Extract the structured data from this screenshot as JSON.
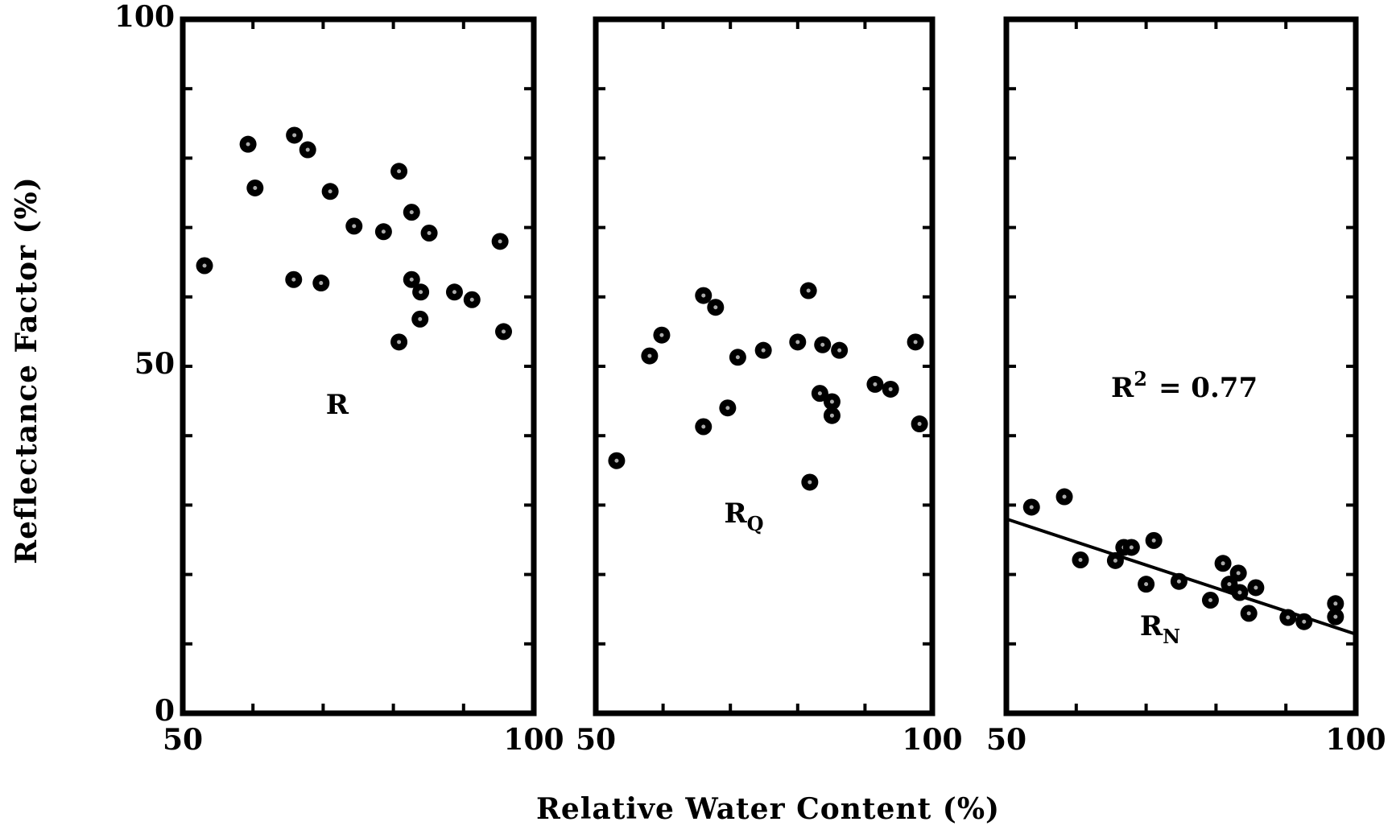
{
  "xlabel": "Relative Water Content (%)",
  "ylabel": "Reflectance Factor (%)",
  "chart_data": [
    {
      "type": "scatter",
      "label": "R",
      "color": "#000000",
      "xlim": [
        50,
        100
      ],
      "ylim": [
        0,
        100
      ],
      "xticks": [
        50,
        100
      ],
      "yticks": [
        0,
        50,
        100
      ],
      "xminor": [
        60,
        70,
        80,
        90
      ],
      "yminor": [
        10,
        20,
        30,
        40,
        50,
        60,
        70,
        80,
        90
      ],
      "x": [
        53.1,
        59.3,
        60.3,
        65.9,
        67.8,
        65.8,
        69.7,
        71.0,
        74.4,
        78.6,
        80.8,
        82.6,
        85.1,
        82.6,
        83.9,
        83.8,
        80.8,
        88.7,
        91.2,
        95.2,
        95.7
      ],
      "values": [
        64.5,
        82.0,
        75.7,
        83.3,
        81.2,
        62.5,
        62.0,
        75.2,
        70.2,
        69.4,
        78.1,
        72.2,
        69.2,
        62.5,
        60.7,
        56.8,
        53.5,
        60.7,
        59.6,
        68.0,
        55.0
      ]
    },
    {
      "type": "scatter",
      "label": "R",
      "label_sub": "Q",
      "color": "#000000",
      "xlim": [
        50,
        100
      ],
      "ylim": [
        0,
        100
      ],
      "xticks": [
        50,
        100
      ],
      "xminor": [
        60,
        70,
        80,
        90
      ],
      "yminor": [
        10,
        20,
        30,
        40,
        50,
        60,
        70,
        80,
        90
      ],
      "x": [
        53.1,
        58.0,
        59.8,
        66.0,
        67.8,
        66.0,
        69.6,
        71.1,
        74.9,
        80.0,
        81.6,
        83.7,
        86.2,
        83.3,
        85.1,
        85.1,
        81.8,
        91.5,
        93.8,
        97.5,
        98.1
      ],
      "values": [
        36.4,
        51.5,
        54.5,
        60.2,
        58.5,
        41.3,
        44.0,
        51.3,
        52.3,
        53.5,
        60.9,
        53.1,
        52.3,
        46.1,
        44.9,
        42.9,
        33.3,
        47.4,
        46.7,
        53.5,
        41.7
      ]
    },
    {
      "type": "scatter",
      "label": "R",
      "label_sub": "N",
      "color": "#000000",
      "annotation": {
        "base": "R",
        "sup": "2",
        "text": "= 0.77"
      },
      "xlim": [
        50,
        100
      ],
      "ylim": [
        0,
        100
      ],
      "xticks": [
        50,
        100
      ],
      "xminor": [
        60,
        70,
        80,
        90
      ],
      "yminor": [
        10,
        20,
        30,
        40,
        50,
        60,
        70,
        80,
        90
      ],
      "x": [
        53.6,
        58.3,
        60.6,
        65.6,
        66.8,
        67.9,
        71.1,
        70.0,
        74.7,
        79.2,
        81.0,
        83.2,
        81.9,
        83.4,
        85.7,
        84.7,
        90.3,
        92.6,
        97.1,
        97.1
      ],
      "values": [
        29.7,
        31.2,
        22.1,
        22.0,
        23.9,
        23.9,
        24.9,
        18.6,
        19.0,
        16.3,
        21.6,
        20.2,
        18.6,
        17.4,
        18.1,
        14.4,
        13.8,
        13.2,
        15.8,
        13.9
      ],
      "fit": {
        "x": [
          50,
          100
        ],
        "y": [
          28.0,
          11.4
        ]
      }
    }
  ]
}
